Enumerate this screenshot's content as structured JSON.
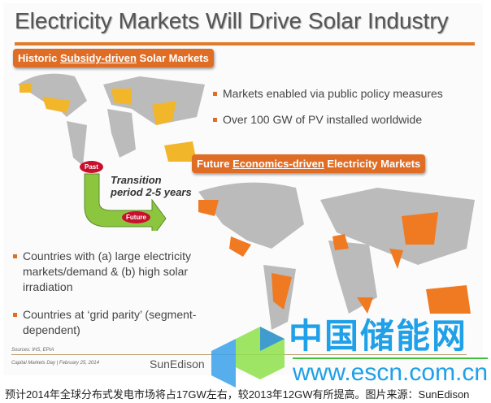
{
  "slide": {
    "title": "Electricity Markets Will Drive Solar Industry",
    "historic_tag": {
      "pre": "Historic ",
      "u": "Subsidy-driven",
      "post": " Solar Markets"
    },
    "historic_bullets": [
      "Markets enabled via public policy measures",
      "Over 100 GW of PV installed worldwide"
    ],
    "future_tag": {
      "pre": "Future ",
      "u": "Economics-driven",
      "post": " Electricity Markets"
    },
    "transition": {
      "past": "Past",
      "future": "Future",
      "text": "Transition period 2-5 years"
    },
    "future_bullets": [
      "Countries with (a) large electricity markets/demand & (b) high solar irradiation",
      "Countries at ‘grid parity’ (segment-dependent)"
    ],
    "sources": "Sources: IHS, EPIA",
    "footer": "Capital Markets Day | February 25, 2014",
    "logo": "SunEdison",
    "colors": {
      "accent": "#e06d25",
      "historic_map": "#f2b62a",
      "future_map": "#f07a22"
    }
  },
  "watermark": {
    "text": "中国储能网",
    "url": "www.escn.com.cn"
  },
  "caption": "预计2014年全球分布式发电市场将占17GW左右，较2013年12GW有所提高。图片来源：SunEdison"
}
